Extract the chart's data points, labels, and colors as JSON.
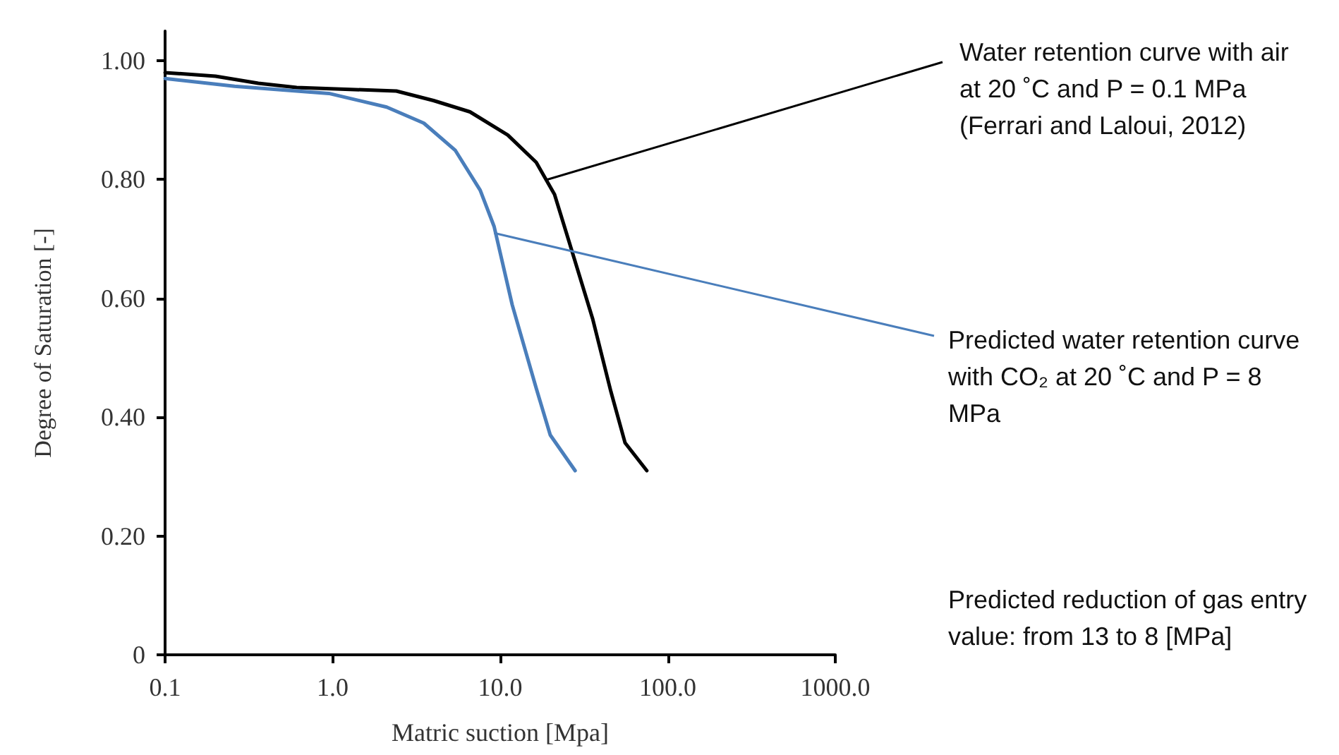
{
  "chart_data": {
    "type": "line",
    "xlabel": "Matric suction [Mpa]",
    "ylabel": "Degree of Saturation [-]",
    "log": "x",
    "xlim": [
      0.1,
      1000
    ],
    "xticks": [
      0.1,
      {
        "value": 1,
        "label": "1.0"
      },
      {
        "value": 10,
        "label": "10.0"
      },
      {
        "value": 100,
        "label": "100.0"
      },
      {
        "value": 1000,
        "label": "1000.0"
      }
    ],
    "ylim": [
      0,
      1.05
    ],
    "yticks": [
      0,
      {
        "value": 0.2,
        "label": "0.20"
      },
      {
        "value": 0.4,
        "label": "0.40"
      },
      {
        "value": 0.6,
        "label": "0.60"
      },
      {
        "value": 0.8,
        "label": "0.80"
      },
      {
        "value": 1,
        "label": "1.00"
      }
    ],
    "marker": "none",
    "line_style": "solid",
    "series": [
      {
        "color": "#000000",
        "x": [
          0.1,
          0.2,
          0.36,
          0.61,
          2.4,
          4.0,
          6.6,
          11.1,
          16.4,
          21.1,
          25.6,
          35.6,
          45.8,
          55.6,
          75
        ],
        "values": [
          0.98,
          0.974,
          0.962,
          0.955,
          0.949,
          0.933,
          0.914,
          0.875,
          0.829,
          0.775,
          0.698,
          0.566,
          0.443,
          0.357,
          0.31
        ]
      },
      {
        "color": "#4a7ebb",
        "x": [
          0.1,
          0.26,
          0.95,
          2.1,
          3.5,
          5.4,
          7.6,
          9.2,
          11.8,
          16.4,
          19.9,
          28
        ],
        "values": [
          0.97,
          0.957,
          0.945,
          0.922,
          0.895,
          0.849,
          0.782,
          0.721,
          0.589,
          0.449,
          0.37,
          0.31
        ]
      }
    ],
    "annotations": [
      {
        "text": "Water retention curve with air at 20 ˚C and P = 0.1 MPa (Ferrari and Laloui, 2012)",
        "x": 19.1,
        "y": 0.8
      },
      {
        "text": "Predicted water retention curve with CO₂ at 20 ˚C and P = 8 MPa",
        "x": 9.2,
        "y": 0.71
      },
      "Predicted reduction of gas entry value: from 13 to 8 [MPa]"
    ]
  }
}
